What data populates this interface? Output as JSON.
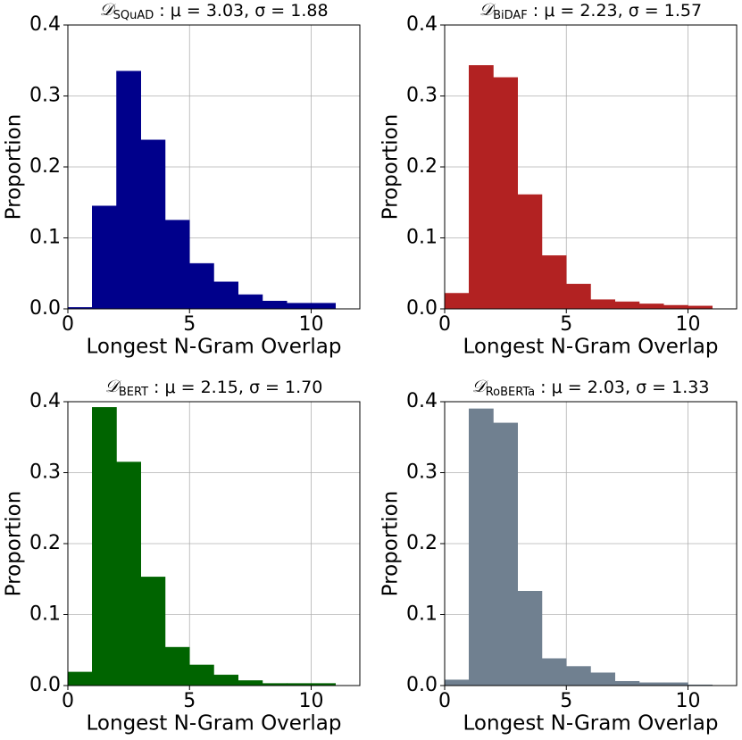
{
  "chart_data": [
    {
      "type": "histogram",
      "title": "𝒟",
      "title_subscript": "SQuAD",
      "title_rest": " :  μ = 3.03,  σ = 1.88",
      "xlabel": "Longest N-Gram Overlap",
      "ylabel": "Proportion",
      "color": "#00008b",
      "grid": true,
      "bins": [
        0,
        1,
        2,
        3,
        4,
        5,
        6,
        7,
        8,
        9,
        10,
        11
      ],
      "counts": [
        0.002,
        0.145,
        0.335,
        0.238,
        0.125,
        0.064,
        0.038,
        0.02,
        0.011,
        0.008,
        0.008
      ],
      "xlim": [
        0,
        12
      ],
      "ylim": [
        0,
        0.4
      ],
      "xticks": [
        0,
        5,
        10
      ],
      "yticks": [
        {
          "value": 0,
          "label": "0.0"
        },
        0.1,
        0.2,
        0.3,
        0.4
      ]
    },
    {
      "type": "histogram",
      "title": "𝒟",
      "title_subscript": "BiDAF",
      "title_rest": " :  μ = 2.23,  σ = 1.57",
      "xlabel": "Longest N-Gram Overlap",
      "ylabel": "Proportion",
      "color": "#b22222",
      "grid": true,
      "bins": [
        0,
        1,
        2,
        3,
        4,
        5,
        6,
        7,
        8,
        9,
        10,
        11
      ],
      "counts": [
        0.022,
        0.343,
        0.326,
        0.161,
        0.075,
        0.035,
        0.013,
        0.01,
        0.007,
        0.005,
        0.004
      ],
      "xlim": [
        0,
        12
      ],
      "ylim": [
        0,
        0.4
      ],
      "xticks": [
        0,
        5,
        10
      ],
      "yticks": [
        {
          "value": 0,
          "label": "0.0"
        },
        0.1,
        0.2,
        0.3,
        0.4
      ]
    },
    {
      "type": "histogram",
      "title": "𝒟",
      "title_subscript": "BERT",
      "title_rest": " :  μ = 2.15,  σ = 1.70",
      "xlabel": "Longest N-Gram Overlap",
      "ylabel": "Proportion",
      "color": "#006400",
      "grid": true,
      "bins": [
        0,
        1,
        2,
        3,
        4,
        5,
        6,
        7,
        8,
        9,
        10,
        11
      ],
      "counts": [
        0.019,
        0.392,
        0.315,
        0.153,
        0.054,
        0.029,
        0.015,
        0.007,
        0.003,
        0.003,
        0.003
      ],
      "xlim": [
        0,
        12
      ],
      "ylim": [
        0,
        0.4
      ],
      "xticks": [
        0,
        5,
        10
      ],
      "yticks": [
        {
          "value": 0,
          "label": "0.0"
        },
        0.1,
        0.2,
        0.3,
        0.4
      ]
    },
    {
      "type": "histogram",
      "title": "𝒟",
      "title_subscript": "RoBERTa",
      "title_rest": " :  μ = 2.03,  σ = 1.33",
      "xlabel": "Longest N-Gram Overlap",
      "ylabel": "Proportion",
      "color": "#708090",
      "grid": true,
      "bins": [
        0,
        1,
        2,
        3,
        4,
        5,
        6,
        7,
        8,
        9,
        10,
        11
      ],
      "counts": [
        0.008,
        0.39,
        0.37,
        0.133,
        0.038,
        0.027,
        0.018,
        0.006,
        0.004,
        0.004,
        0.001
      ],
      "xlim": [
        0,
        12
      ],
      "ylim": [
        0,
        0.4
      ],
      "xticks": [
        0,
        5,
        10
      ],
      "yticks": [
        {
          "value": 0,
          "label": "0.0"
        },
        0.1,
        0.2,
        0.3,
        0.4
      ]
    }
  ]
}
